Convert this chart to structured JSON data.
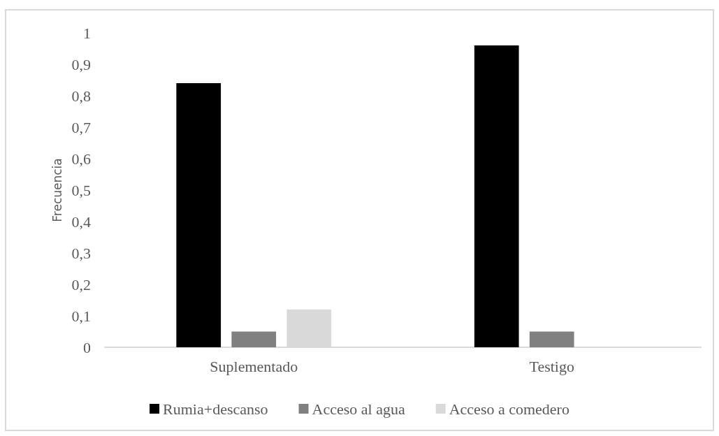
{
  "chart_data": {
    "type": "bar",
    "ylabel": "Frecuencia",
    "categories": [
      "Suplementado",
      "Testigo"
    ],
    "series": [
      {
        "name": "Rumia+descanso",
        "color": "#000000",
        "values": [
          0.84,
          0.96
        ]
      },
      {
        "name": "Acceso al agua",
        "color": "#808080",
        "values": [
          0.05,
          0.05
        ]
      },
      {
        "name": "Acceso a comedero",
        "color": "#d9d9d9",
        "values": [
          0.12,
          0
        ]
      }
    ],
    "ylim": [
      0,
      1
    ],
    "yticks": [
      {
        "value": 0,
        "label": "0"
      },
      {
        "value": 0.1,
        "label": "0,1"
      },
      {
        "value": 0.2,
        "label": "0,2"
      },
      {
        "value": 0.3,
        "label": "0,3"
      },
      {
        "value": 0.4,
        "label": "0,4"
      },
      {
        "value": 0.5,
        "label": "0,5"
      },
      {
        "value": 0.6,
        "label": "0,6"
      },
      {
        "value": 0.7,
        "label": "0,7"
      },
      {
        "value": 0.8,
        "label": "0,8"
      },
      {
        "value": 0.9,
        "label": "0,9"
      },
      {
        "value": 1,
        "label": "1"
      }
    ],
    "grid": false,
    "legend": "bottom"
  }
}
